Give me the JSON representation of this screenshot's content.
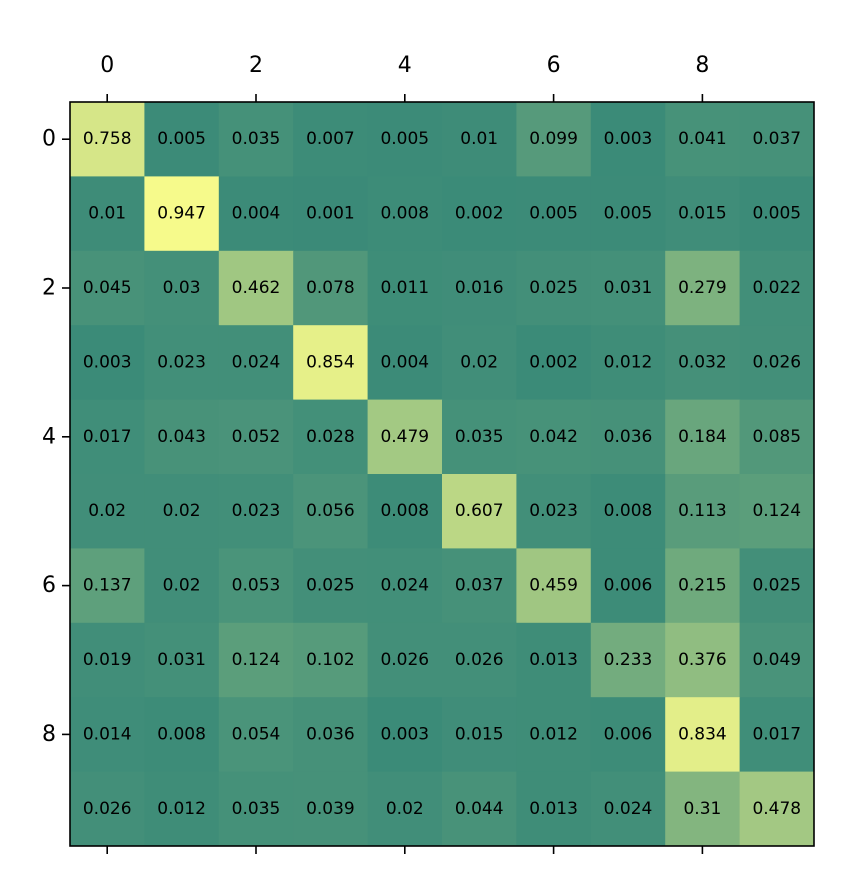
{
  "chart_data": {
    "type": "heatmap",
    "title": "",
    "xlabel": "",
    "ylabel": "",
    "x_tick_labels": [
      "0",
      "2",
      "4",
      "6",
      "8"
    ],
    "y_tick_labels": [
      "0",
      "2",
      "4",
      "6",
      "8"
    ],
    "x_ticks_position": "top",
    "value_range": [
      0,
      1
    ],
    "colormap": {
      "low": "#3a8a78",
      "high": "#ffff8c"
    },
    "grid": false,
    "values": [
      [
        0.758,
        0.005,
        0.035,
        0.007,
        0.005,
        0.01,
        0.099,
        0.003,
        0.041,
        0.037
      ],
      [
        0.01,
        0.947,
        0.004,
        0.001,
        0.008,
        0.002,
        0.005,
        0.005,
        0.015,
        0.005
      ],
      [
        0.045,
        0.03,
        0.462,
        0.078,
        0.011,
        0.016,
        0.025,
        0.031,
        0.279,
        0.022
      ],
      [
        0.003,
        0.023,
        0.024,
        0.854,
        0.004,
        0.02,
        0.002,
        0.012,
        0.032,
        0.026
      ],
      [
        0.017,
        0.043,
        0.052,
        0.028,
        0.479,
        0.035,
        0.042,
        0.036,
        0.184,
        0.085
      ],
      [
        0.02,
        0.02,
        0.023,
        0.056,
        0.008,
        0.607,
        0.023,
        0.008,
        0.113,
        0.124
      ],
      [
        0.137,
        0.02,
        0.053,
        0.025,
        0.024,
        0.037,
        0.459,
        0.006,
        0.215,
        0.025
      ],
      [
        0.019,
        0.031,
        0.124,
        0.102,
        0.026,
        0.026,
        0.013,
        0.233,
        0.376,
        0.049
      ],
      [
        0.014,
        0.008,
        0.054,
        0.036,
        0.003,
        0.015,
        0.012,
        0.006,
        0.834,
        0.017
      ],
      [
        0.026,
        0.012,
        0.035,
        0.039,
        0.02,
        0.044,
        0.013,
        0.024,
        0.31,
        0.478
      ]
    ],
    "cell_labels": [
      [
        "0.758",
        "0.005",
        "0.035",
        "0.007",
        "0.005",
        "0.01",
        "0.099",
        "0.003",
        "0.041",
        "0.037"
      ],
      [
        "0.01",
        "0.947",
        "0.004",
        "0.001",
        "0.008",
        "0.002",
        "0.005",
        "0.005",
        "0.015",
        "0.005"
      ],
      [
        "0.045",
        "0.03",
        "0.462",
        "0.078",
        "0.011",
        "0.016",
        "0.025",
        "0.031",
        "0.279",
        "0.022"
      ],
      [
        "0.003",
        "0.023",
        "0.024",
        "0.854",
        "0.004",
        "0.02",
        "0.002",
        "0.012",
        "0.032",
        "0.026"
      ],
      [
        "0.017",
        "0.043",
        "0.052",
        "0.028",
        "0.479",
        "0.035",
        "0.042",
        "0.036",
        "0.184",
        "0.085"
      ],
      [
        "0.02",
        "0.02",
        "0.023",
        "0.056",
        "0.008",
        "0.607",
        "0.023",
        "0.008",
        "0.113",
        "0.124"
      ],
      [
        "0.137",
        "0.02",
        "0.053",
        "0.025",
        "0.024",
        "0.037",
        "0.459",
        "0.006",
        "0.215",
        "0.025"
      ],
      [
        "0.019",
        "0.031",
        "0.124",
        "0.102",
        "0.026",
        "0.026",
        "0.013",
        "0.233",
        "0.376",
        "0.049"
      ],
      [
        "0.014",
        "0.008",
        "0.054",
        "0.036",
        "0.003",
        "0.015",
        "0.012",
        "0.006",
        "0.834",
        "0.017"
      ],
      [
        "0.026",
        "0.012",
        "0.035",
        "0.039",
        "0.02",
        "0.044",
        "0.013",
        "0.024",
        "0.31",
        "0.478"
      ]
    ]
  }
}
